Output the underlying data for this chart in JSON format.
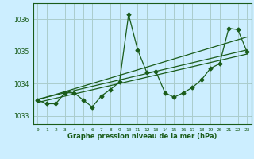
{
  "bg_color": "#cceeff",
  "grid_color": "#aacccc",
  "line_color": "#1a5c1a",
  "xlabel": "Graphe pression niveau de la mer (hPa)",
  "xlim": [
    -0.5,
    23.5
  ],
  "ylim": [
    1032.75,
    1036.5
  ],
  "yticks": [
    1033,
    1034,
    1035,
    1036
  ],
  "xticks": [
    0,
    1,
    2,
    3,
    4,
    5,
    6,
    7,
    8,
    9,
    10,
    11,
    12,
    13,
    14,
    15,
    16,
    17,
    18,
    19,
    20,
    21,
    22,
    23
  ],
  "main_x": [
    0,
    1,
    2,
    3,
    4,
    5,
    6,
    7,
    8,
    9,
    10,
    11,
    12,
    13,
    14,
    15,
    16,
    17,
    18,
    19,
    20,
    21,
    22,
    23
  ],
  "main_y": [
    1033.5,
    1033.38,
    1033.38,
    1033.72,
    1033.72,
    1033.5,
    1033.28,
    1033.62,
    1033.82,
    1034.05,
    1036.15,
    1035.05,
    1034.35,
    1034.38,
    1033.72,
    1033.58,
    1033.72,
    1033.88,
    1034.12,
    1034.48,
    1034.62,
    1035.72,
    1035.68,
    1035.0
  ],
  "trend1_x": [
    0,
    23
  ],
  "trend1_y": [
    1033.52,
    1035.05
  ],
  "trend2_x": [
    0,
    23
  ],
  "trend2_y": [
    1033.42,
    1034.92
  ],
  "trend3_x": [
    0,
    23
  ],
  "trend3_y": [
    1033.5,
    1035.45
  ],
  "marker": "D",
  "markersize": 2.5,
  "linewidth": 0.9
}
